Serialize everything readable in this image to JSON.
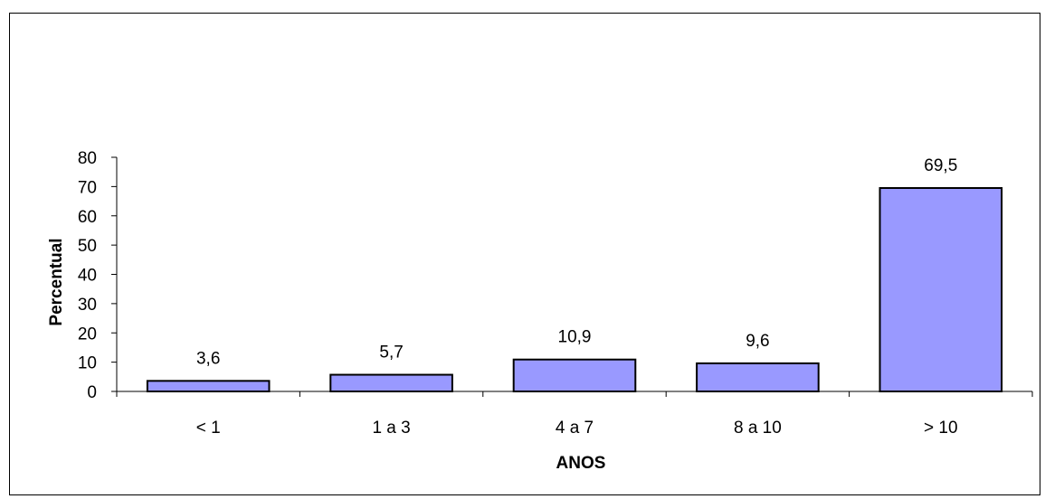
{
  "chart_data": {
    "type": "bar",
    "categories": [
      "< 1",
      "1 a 3",
      "4 a 7",
      "8 a 10",
      "> 10"
    ],
    "values": [
      3.6,
      5.7,
      10.9,
      9.6,
      69.5
    ],
    "data_labels": [
      "3,6",
      "5,7",
      "10,9",
      "9,6",
      "69,5"
    ],
    "title": "",
    "xlabel": "ANOS",
    "ylabel": "Percentual",
    "ylim": [
      0,
      80
    ],
    "yticks": [
      0,
      10,
      20,
      30,
      40,
      50,
      60,
      70,
      80
    ],
    "grid": false,
    "legend": "none",
    "bar_color": "#9999ff",
    "bar_edge_color": "#000000"
  }
}
